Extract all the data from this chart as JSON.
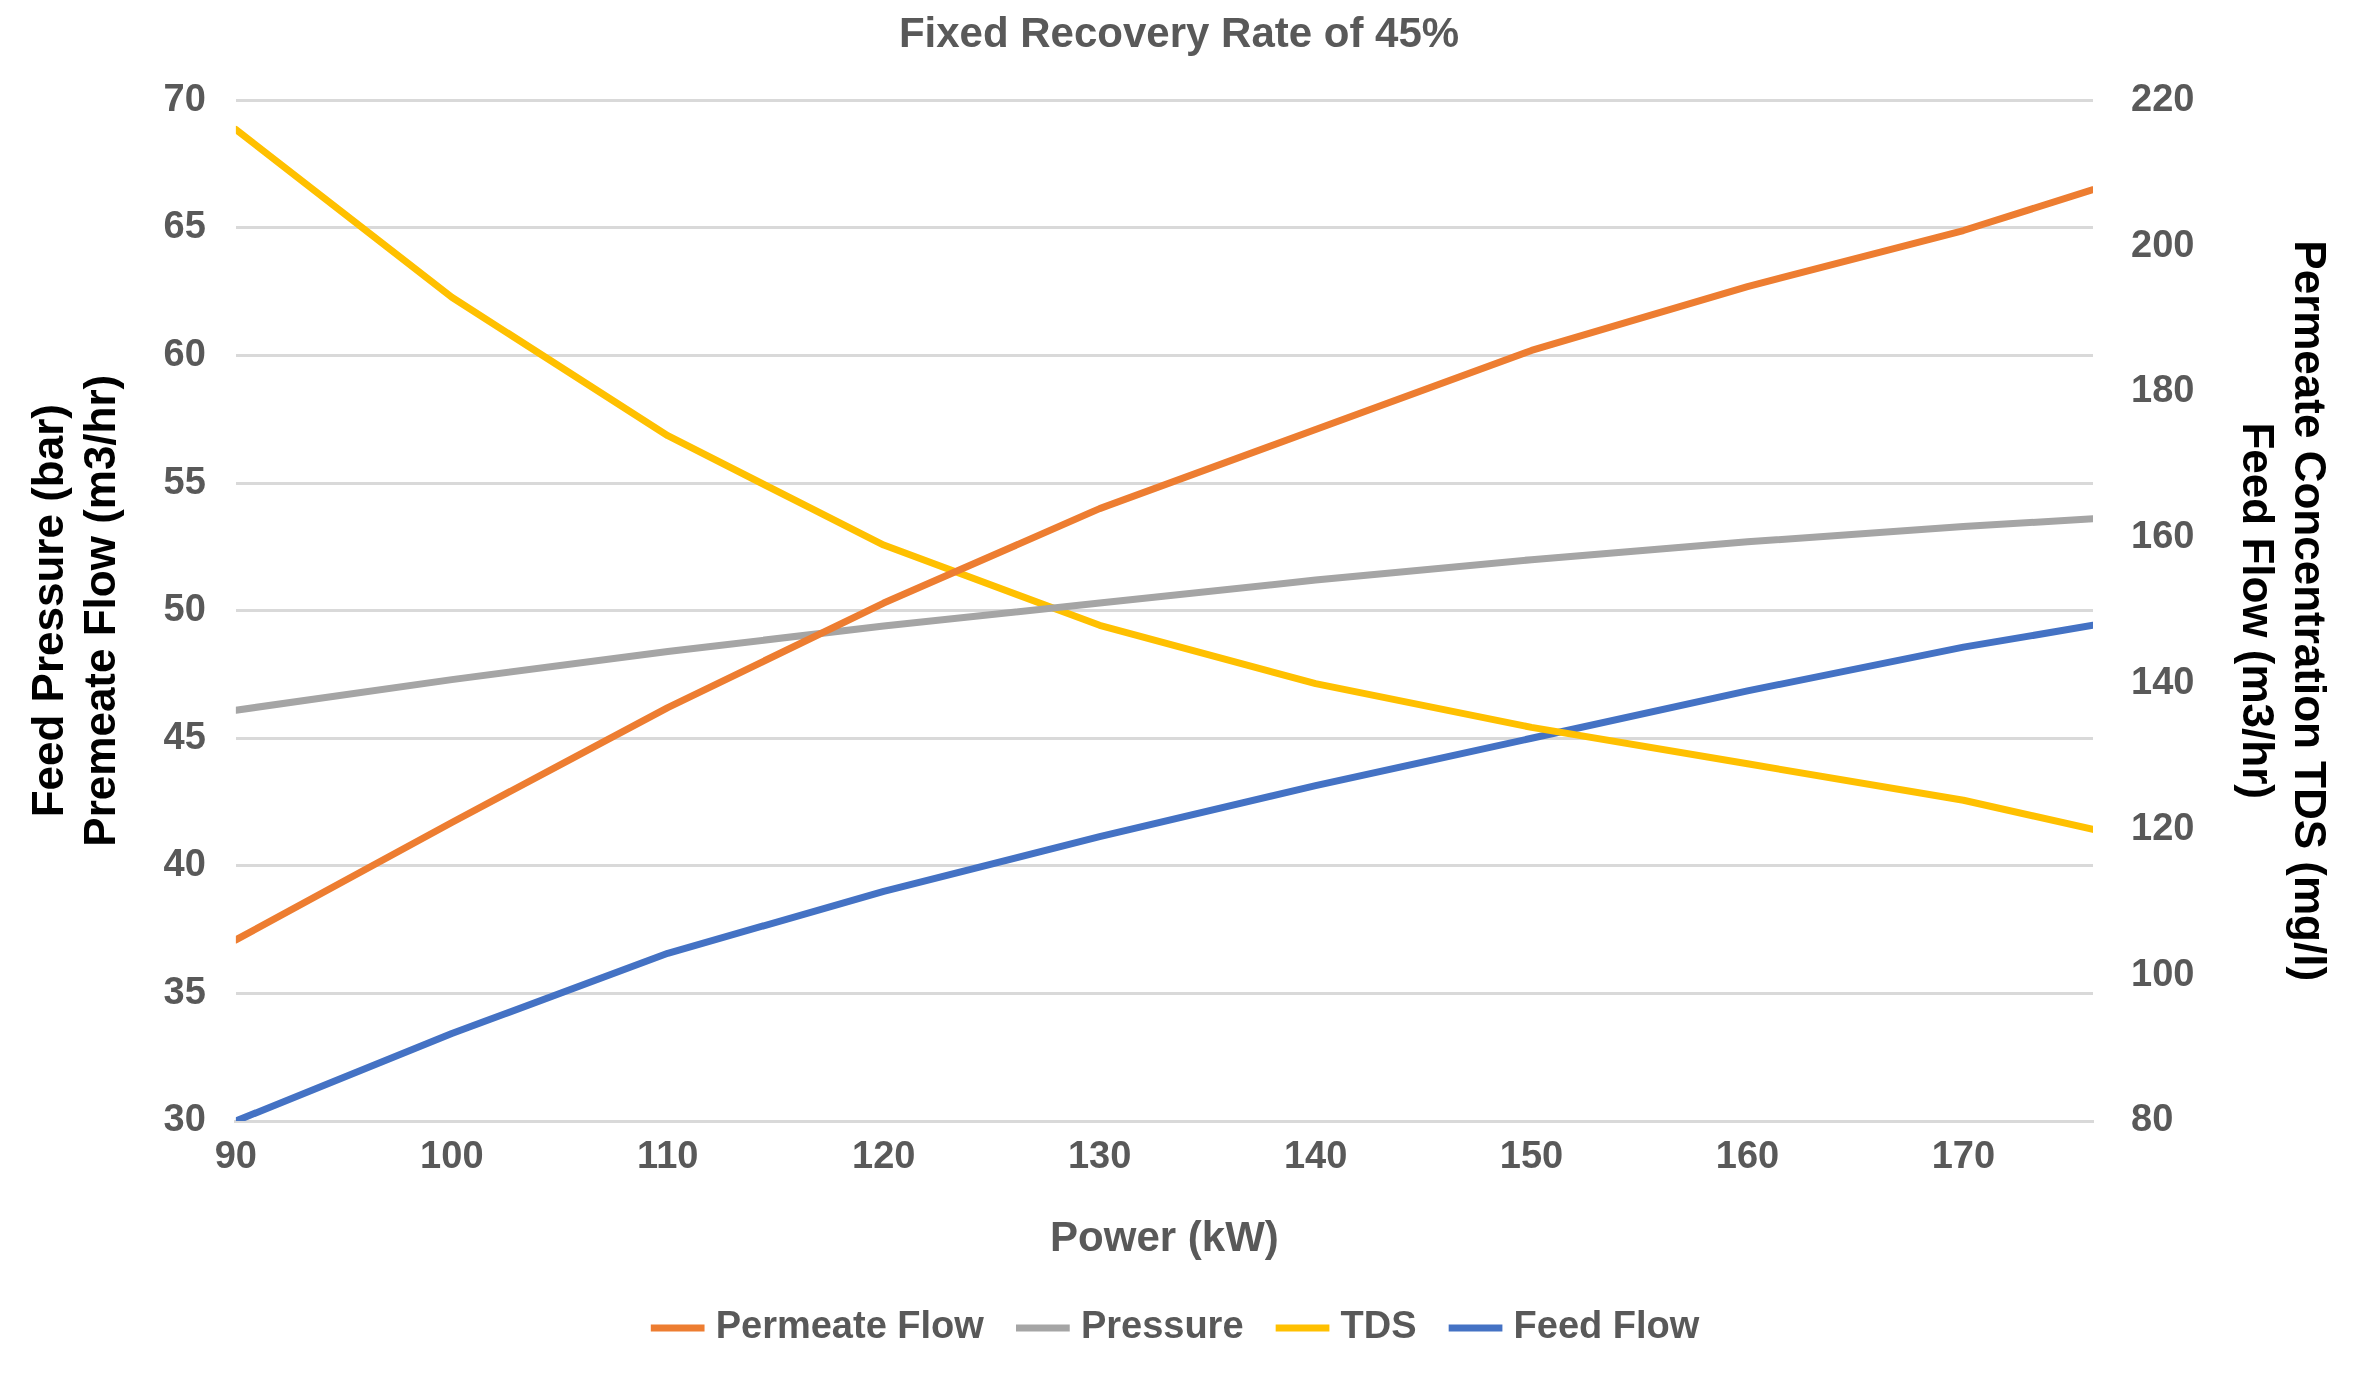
{
  "chart_data": {
    "type": "line",
    "title": "Fixed Recovery Rate of 45%",
    "xlabel": "Power (kW)",
    "ylabel": "Feed Pressure (bar)\nPremeate Flow (m3/hr)",
    "y2label": "Permeate Concentration TDS (mg/l)\nFeed Flow (m3/hr)",
    "x": [
      90,
      100,
      110,
      120,
      130,
      140,
      150,
      160,
      170,
      176
    ],
    "series": [
      {
        "name": "Permeate Flow",
        "color": "#ed7d31",
        "values": [
          37.1,
          41.7,
          46.2,
          50.3,
          54.0,
          57.1,
          60.2,
          62.7,
          64.9,
          66.5
        ]
      },
      {
        "name": "Pressure",
        "color": "#a5a5a5",
        "values": [
          46.1,
          47.3,
          48.4,
          49.4,
          50.3,
          51.2,
          52.0,
          52.7,
          53.3,
          53.6
        ]
      },
      {
        "name": "TDS",
        "color": "#ffc000",
        "axis": "y2",
        "values": [
          216,
          193,
          174,
          159,
          148,
          140,
          134,
          129,
          124,
          120
        ]
      },
      {
        "name": "Feed Flow",
        "color": "#4472c4",
        "axis": "y2",
        "values": [
          80,
          92,
          103,
          111.5,
          119,
          126,
          132.5,
          139,
          145,
          148
        ]
      }
    ],
    "xlim": [
      90,
      176
    ],
    "xticks": [
      90,
      100,
      110,
      120,
      130,
      140,
      150,
      160,
      170
    ],
    "ylim": [
      30,
      70
    ],
    "yticks": [
      30,
      35,
      40,
      45,
      50,
      55,
      60,
      65,
      70
    ],
    "y2lim": [
      80,
      220
    ],
    "y2ticks": [
      80,
      100,
      120,
      140,
      160,
      180,
      200,
      220
    ],
    "grid": "y",
    "legend": "bottom",
    "marker": "none",
    "line_style": "solid"
  }
}
